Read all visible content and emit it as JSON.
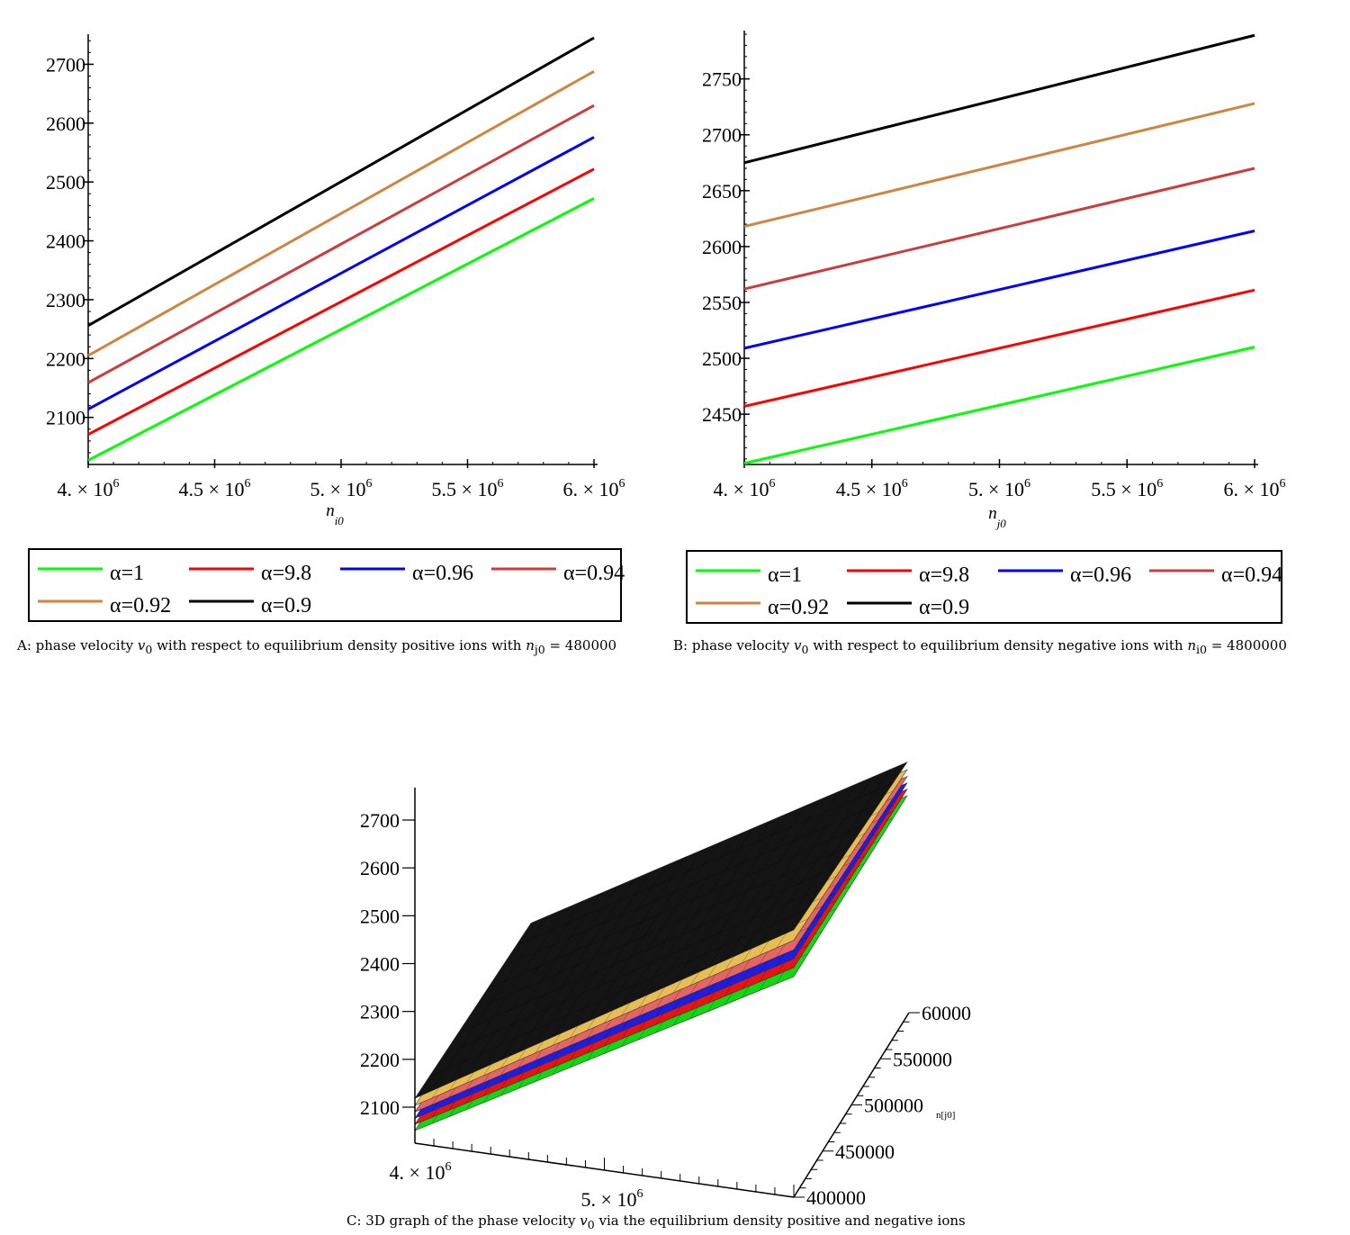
{
  "chart_data": [
    {
      "id": "A",
      "type": "line",
      "xlabel": "n",
      "xlabel_sub": "i0",
      "x": [
        4000000,
        6000000
      ],
      "xlim": [
        4000000,
        6000000
      ],
      "ylim": [
        2020,
        2745
      ],
      "xtick_values": [
        4000000,
        4500000,
        5000000,
        5500000,
        6000000
      ],
      "xtick_labels": [
        {
          "base": "4. × 10",
          "exp": "6"
        },
        {
          "base": "4.5 × 10",
          "exp": "6"
        },
        {
          "base": "5. × 10",
          "exp": "6"
        },
        {
          "base": "5.5 × 10",
          "exp": "6"
        },
        {
          "base": "6. × 10",
          "exp": "6"
        }
      ],
      "yticks": [
        2100,
        2200,
        2300,
        2400,
        2500,
        2600,
        2700
      ],
      "series": [
        {
          "name": "α=1",
          "color": "#00ff00",
          "values": [
            2027,
            2472
          ]
        },
        {
          "name": "α=9.8",
          "color": "#ff0000",
          "values": [
            2071,
            2522
          ]
        },
        {
          "name": "α=0.96",
          "color": "#0000ff",
          "values": [
            2114,
            2576
          ]
        },
        {
          "name": "α=0.94",
          "color": "#cc3c3c",
          "values": [
            2159,
            2630
          ]
        },
        {
          "name": "α=0.92",
          "color": "#cd853f",
          "values": [
            2205,
            2688
          ]
        },
        {
          "name": "α=0.9",
          "color": "#000000",
          "values": [
            2256,
            2745
          ]
        }
      ],
      "caption": {
        "prefix": "A: phase velocity ",
        "sym": "v",
        "sym_sub": "0",
        "mid": " with respect to equilibrium density positive ions with ",
        "var": "n",
        "var_sub": "j0",
        "suffix": " = 480000"
      }
    },
    {
      "id": "B",
      "type": "line",
      "xlabel": "n",
      "xlabel_sub": "j0",
      "x": [
        4000000,
        6000000
      ],
      "xlim": [
        4000000,
        6000000
      ],
      "ylim": [
        2405,
        2790
      ],
      "xtick_values": [
        4000000,
        4500000,
        5000000,
        5500000,
        6000000
      ],
      "xtick_labels": [
        {
          "base": "4. × 10",
          "exp": "6"
        },
        {
          "base": "4.5 × 10",
          "exp": "6"
        },
        {
          "base": "5. × 10",
          "exp": "6"
        },
        {
          "base": "5.5 × 10",
          "exp": "6"
        },
        {
          "base": "6. × 10",
          "exp": "6"
        }
      ],
      "yticks": [
        2450,
        2500,
        2550,
        2600,
        2650,
        2700,
        2750
      ],
      "series": [
        {
          "name": "α=1",
          "color": "#00ff00",
          "values": [
            2406,
            2510
          ]
        },
        {
          "name": "α=9.8",
          "color": "#ff0000",
          "values": [
            2457,
            2561
          ]
        },
        {
          "name": "α=0.96",
          "color": "#0000ff",
          "values": [
            2509,
            2614
          ]
        },
        {
          "name": "α=0.94",
          "color": "#cc3c3c",
          "values": [
            2562,
            2670
          ]
        },
        {
          "name": "α=0.92",
          "color": "#cd853f",
          "values": [
            2618,
            2728
          ]
        },
        {
          "name": "α=0.9",
          "color": "#000000",
          "values": [
            2675,
            2789
          ]
        }
      ],
      "caption": {
        "prefix": "B: phase velocity ",
        "sym": "v",
        "sym_sub": "0",
        "mid": " with respect to equilibrium density negative ions with ",
        "var": "n",
        "var_sub": "i0",
        "suffix": " = 4800000"
      }
    },
    {
      "id": "C",
      "type": "surface",
      "z_ticks": [
        2100,
        2200,
        2300,
        2400,
        2500,
        2600,
        2700
      ],
      "x_tick_labels": [
        {
          "base": "4. × 10",
          "exp": "6"
        },
        {
          "base": "5. × 10",
          "exp": "6"
        }
      ],
      "y_ticks": [
        "400000",
        "450000",
        "500000",
        "550000",
        "60000"
      ],
      "y_label": "n[j0]",
      "series": [
        {
          "name": "α=1",
          "color": "#14d614",
          "low": 2027,
          "high": 2520
        },
        {
          "name": "α=9.8",
          "color": "#e61414",
          "low": 2071,
          "high": 2575
        },
        {
          "name": "α=0.96",
          "color": "#1e1edc",
          "low": 2114,
          "high": 2630
        },
        {
          "name": "α=0.94",
          "color": "#e66464",
          "low": 2159,
          "high": 2688
        },
        {
          "name": "α=0.92",
          "color": "#e6be55",
          "low": 2205,
          "high": 2745
        },
        {
          "name": "α=0.9",
          "color": "#141414",
          "low": 2256,
          "high": 2800
        }
      ],
      "caption": {
        "prefix": "C: 3D graph of the phase velocity ",
        "sym": "v",
        "sym_sub": "0",
        "suffix": " via the equilibrium density positive and negative ions"
      }
    }
  ]
}
